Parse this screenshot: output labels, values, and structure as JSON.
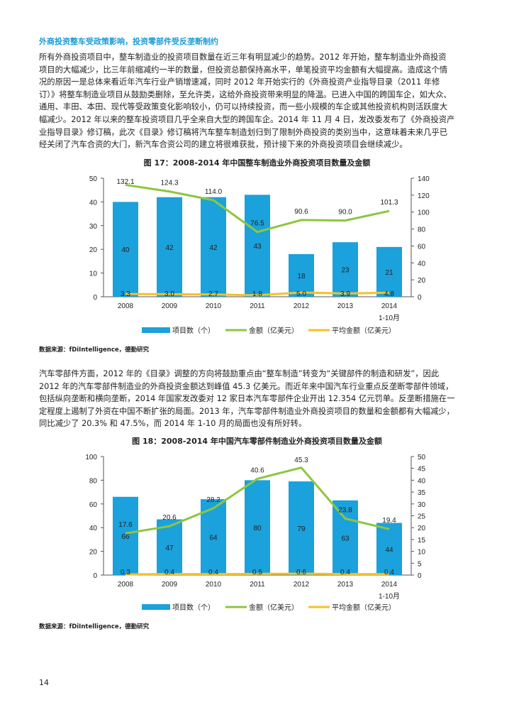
{
  "heading": "外商投资整车受政策影响，投资零部件受反垄断制约",
  "paragraph1": [
    "所有外商投资项目中，整车制造业的投资项目数量在近三年有明显减少的趋势。2012 年开始，整车制造业外商投资",
    "项目的大幅减少，比三年前缩减约一半的数量，但投资总额保持高水平，单笔投资平均金额有大幅提高。造成这个情",
    "况的原因一是总体来看近年汽车行业产销增速减，同时 2012 年开始实行的《外商投资产业指导目录（2011 年修",
    "订）》将整车制造业项目从鼓励类删除，至允许类，这给外商投资带来明显的降温。已进入中国的跨国车企，如大众、",
    "通用、丰田、本田、现代等受政策变化影响较小，仍可以持续投资，而一些小规模的车企或其他投资机构则活跃度大",
    "幅减少。2012 年以来的整车投资项目几乎全来自大型的跨国车企。2014 年 11 月 4 日，发改委发布了《外商投资产",
    "业指导目录》修订稿，此次《目录》修订稿将汽车整车制造划归到了限制外商投资的类别当中，这意味着未来几乎已",
    "经关闭了汽车合资的大门，新汽车合资公司的建立将很难获批，预计接下来的外商投资项目会继续减少。"
  ],
  "paragraph2": [
    "汽车零部件方面，2012 年的《目录》调整的方向将鼓励重点由“整车制造”转变为“关键部件的制造和研发”，因此",
    "2012 年的汽车零部件制造业的外商投资金额达到峰值 45.3 亿美元。而近年来中国汽车行业重点反垄断零部件领域，",
    "包括纵向垄断和横向垄断，2014 年国家发改委对 12 家日本汽车零部件企业开出 12.354 亿元罚单。反垄断措施在一",
    "定程度上遏制了外资在中国不断扩张的局面。2013 年，汽车零部件制造业外商投资项目的数量和金额都有大幅减少，",
    "同比减少了 20.3% 和 47.5%，而 2014 年 1-10 月的局面也没有所好转。"
  ],
  "source_text": "数据来源：fDiIntelligence，德勤研究",
  "page_number": "14",
  "colors": {
    "bar": "#1ba1db",
    "amount_line": "#8dc63f",
    "avg_line": "#f5c02a",
    "heading": "#1a9bd7"
  },
  "chart_data": [
    {
      "type": "bar+line",
      "title": "图 17：2008-2014 年中国整车制造业外商投资项目数量及金额",
      "categories": [
        "2008",
        "2009",
        "2010",
        "2011",
        "2012",
        "2013",
        "2014|1-10月"
      ],
      "y_left": {
        "range": [
          0,
          50
        ],
        "ticks": [
          0,
          10,
          20,
          30,
          40,
          50
        ]
      },
      "y_right": {
        "range": [
          0,
          140
        ],
        "ticks": [
          0,
          20,
          40,
          60,
          80,
          100,
          120,
          140
        ]
      },
      "series": [
        {
          "name": "项目数（个）",
          "kind": "bar",
          "axis": "left",
          "values": [
            40,
            42,
            42,
            43,
            18,
            23,
            21
          ]
        },
        {
          "name": "金额（亿美元）",
          "kind": "line",
          "axis": "right",
          "values": [
            132.1,
            124.3,
            114.0,
            76.5,
            90.6,
            90.0,
            101.3
          ]
        },
        {
          "name": "平均金额（亿美元）",
          "kind": "line",
          "axis": "right",
          "values": [
            3.3,
            3.0,
            2.7,
            1.8,
            5.0,
            3.9,
            4.8
          ]
        }
      ],
      "legend": "bottom",
      "grid": false
    },
    {
      "type": "bar+line",
      "title": "图 18：2008-2014 年中国汽车零部件制造业外商投资项目数量及金额",
      "categories": [
        "2008",
        "2009",
        "2010",
        "2011",
        "2012",
        "2013",
        "2014|1-10月"
      ],
      "y_left": {
        "range": [
          0,
          100
        ],
        "ticks": [
          0,
          20,
          40,
          60,
          80,
          100
        ]
      },
      "y_right": {
        "range": [
          0,
          50
        ],
        "ticks": [
          0,
          5,
          10,
          15,
          20,
          25,
          30,
          35,
          40,
          45,
          50
        ]
      },
      "series": [
        {
          "name": "项目数（个）",
          "kind": "bar",
          "axis": "left",
          "values": [
            66,
            47,
            64,
            80,
            79,
            63,
            44
          ]
        },
        {
          "name": "金额（亿美元）",
          "kind": "line",
          "axis": "right",
          "values": [
            17.6,
            20.6,
            28.2,
            40.6,
            45.3,
            23.8,
            19.4
          ]
        },
        {
          "name": "平均金额（亿美元）",
          "kind": "line",
          "axis": "right",
          "values": [
            0.3,
            0.4,
            0.4,
            0.5,
            0.6,
            0.4,
            0.4
          ]
        }
      ],
      "legend": "bottom",
      "grid": false
    }
  ]
}
